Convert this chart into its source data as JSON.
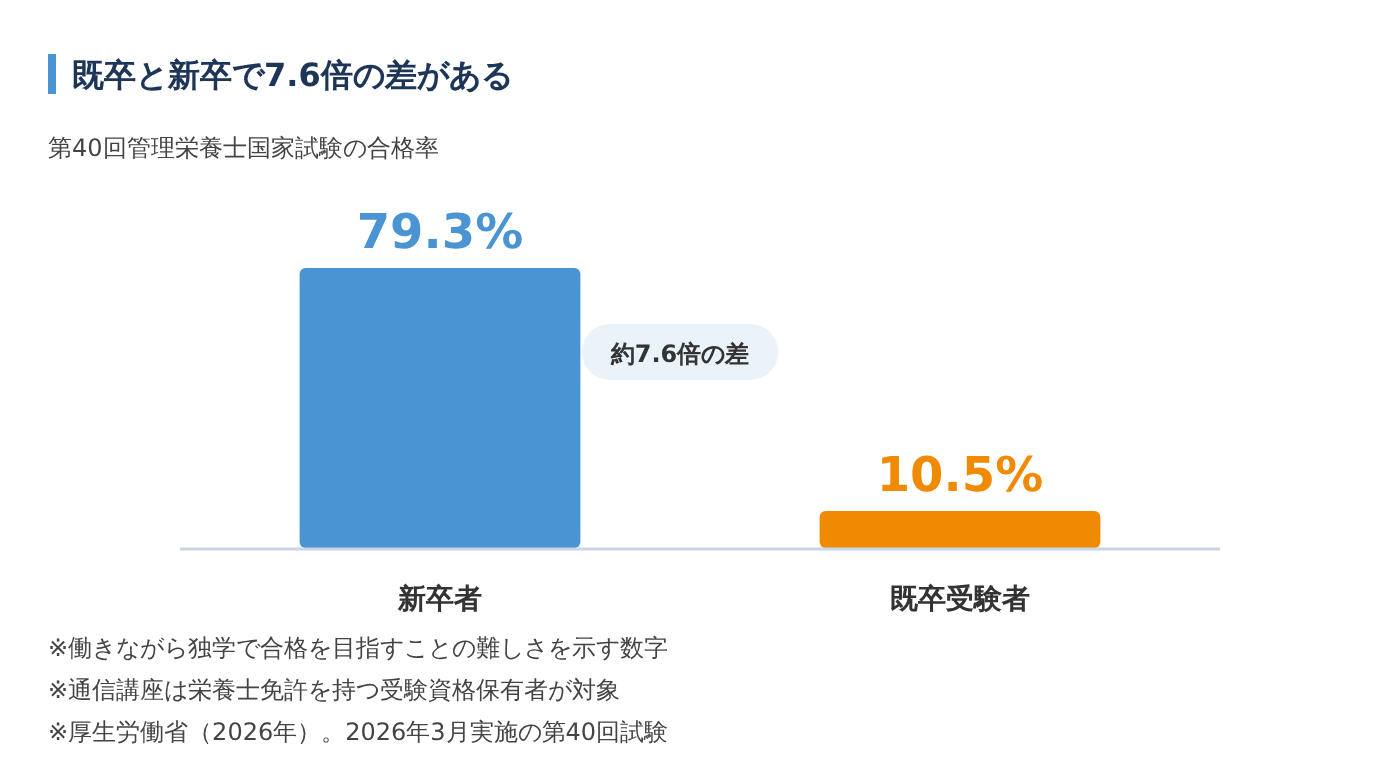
{
  "chart_data": {
    "type": "bar",
    "title": "既卒と新卒で7.6倍の差がある",
    "subtitle": "第40回管理栄養士国家試験の合格率",
    "categories": [
      "新卒者",
      "既卒受験者"
    ],
    "values": [
      79.3,
      10.5
    ],
    "colors": [
      "#4a94d4",
      "#f08a00"
    ],
    "value_labels": [
      "79.3%",
      "10.5%"
    ],
    "annotations": [
      "約7.6倍の差",
      "※働きながら独学で合格を目指すことの難しさを示す数字",
      "※通信講座は栄養士免許を持つ受験資格保有者が対象",
      "※厚生労働省（2026年）。2026年3月実施の第40回試験"
    ]
  }
}
